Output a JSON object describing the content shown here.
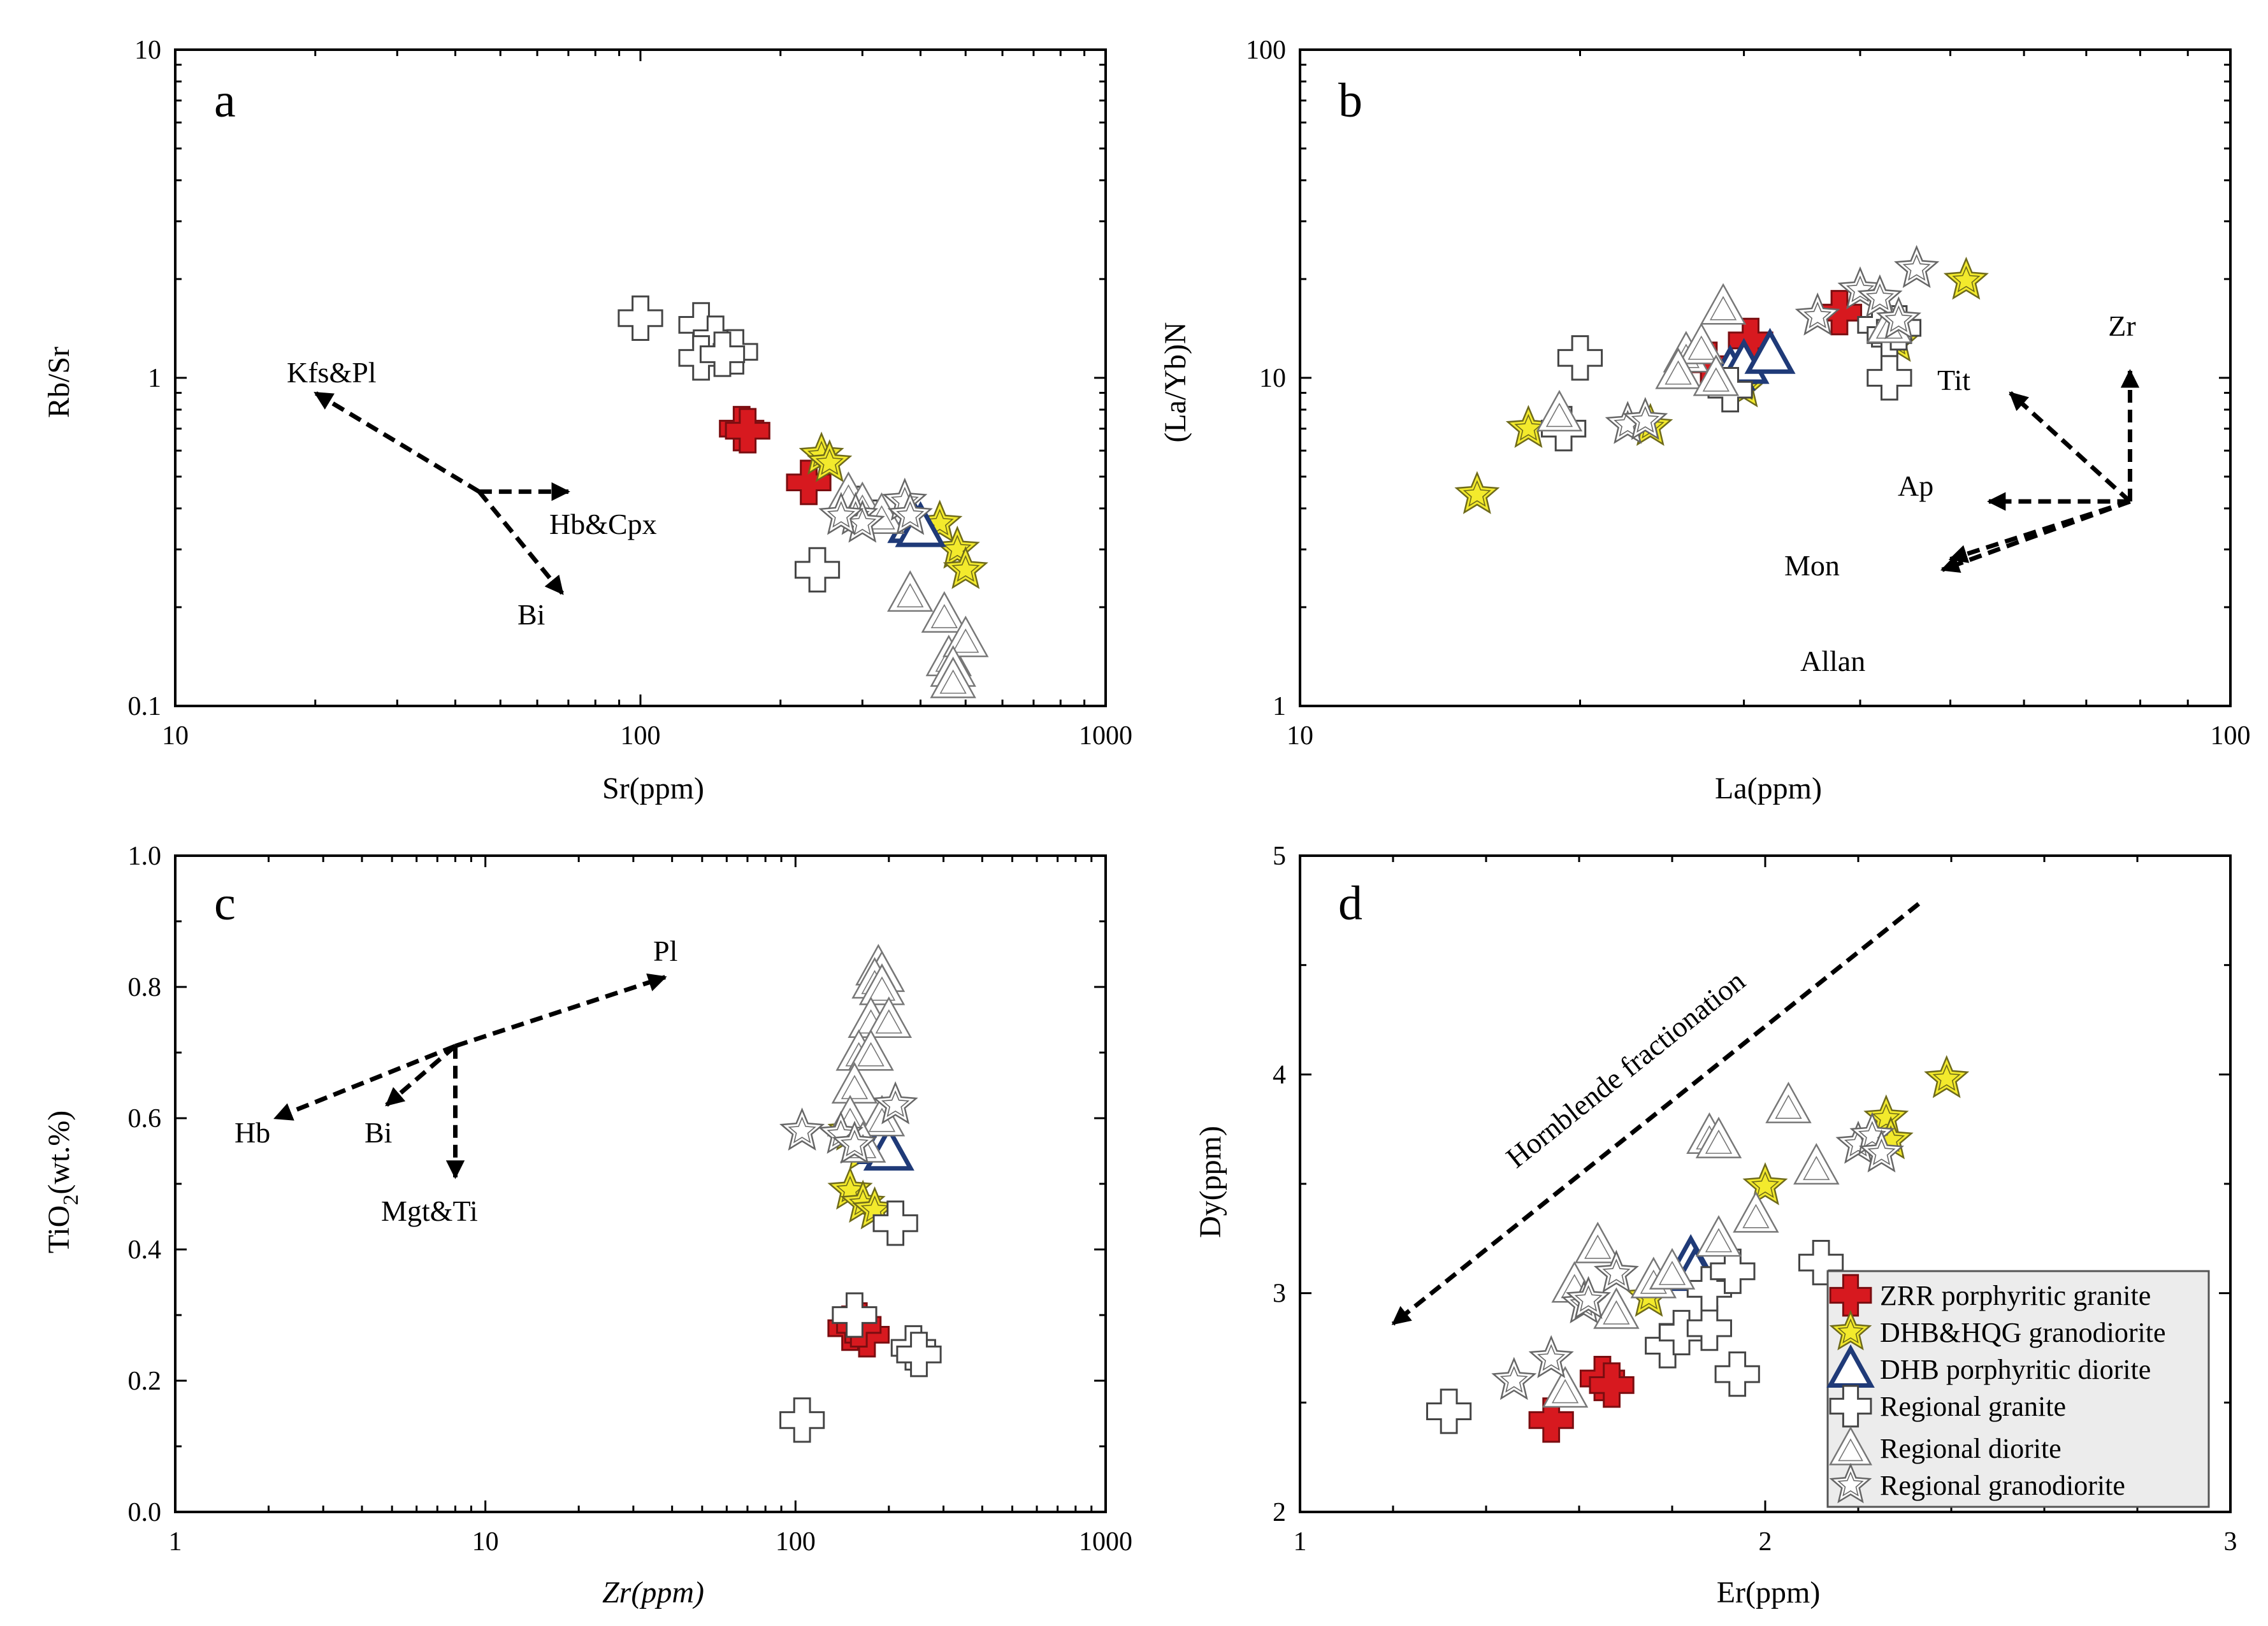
{
  "legend": [
    {
      "key": "zrr",
      "label": "ZRR porphyritic granite"
    },
    {
      "key": "dhb_hqg",
      "label": "DHB&HQG granodiorite"
    },
    {
      "key": "dhb_diorite",
      "label": "DHB porphyritic diorite"
    },
    {
      "key": "reg_granite",
      "label": "Regional granite"
    },
    {
      "key": "reg_diorite",
      "label": "Regional diorite"
    },
    {
      "key": "reg_granodiorite",
      "label": "Regional granodiorite"
    }
  ],
  "series_styles": {
    "zrr": {
      "marker": "cross",
      "fill": "#d7191f",
      "stroke": "#7a0d10"
    },
    "dhb_hqg": {
      "marker": "star",
      "fill": "#f3ea2c",
      "stroke": "#6e6a1a"
    },
    "dhb_diorite": {
      "marker": "triangle",
      "fill": "#ffffff",
      "stroke": "#1f3a78"
    },
    "reg_granite": {
      "marker": "cross",
      "fill": "#ffffff",
      "stroke": "#444444"
    },
    "reg_diorite": {
      "marker": "triangle",
      "fill": "#ffffff",
      "stroke": "#777777"
    },
    "reg_granodiorite": {
      "marker": "star",
      "fill": "#ffffff",
      "stroke": "#666666"
    }
  },
  "chart_data": [
    {
      "id": "a",
      "type": "scatter",
      "panel_label": "a",
      "xlabel": "Sr(ppm)",
      "ylabel": "Rb/Sr",
      "xscale": "log",
      "yscale": "log",
      "xlim": [
        10,
        1000
      ],
      "ylim": [
        0.1,
        10
      ],
      "xticks": [
        {
          "v": 10,
          "label": "10"
        },
        {
          "v": 100,
          "label": "100"
        },
        {
          "v": 1000,
          "label": "1000"
        }
      ],
      "yticks": [
        {
          "v": 0.1,
          "label": "0.1"
        },
        {
          "v": 1,
          "label": "1"
        },
        {
          "v": 10,
          "label": "10"
        }
      ],
      "vectors": [
        {
          "label": "Kfs&Pl",
          "from": [
            45,
            0.45
          ],
          "to": [
            20,
            0.9
          ]
        },
        {
          "label": "Hb&Cpx",
          "from": [
            45,
            0.45
          ],
          "to": [
            70,
            0.45
          ]
        },
        {
          "label": "Bi",
          "from": [
            45,
            0.45
          ],
          "to": [
            68,
            0.22
          ]
        }
      ],
      "series": [
        {
          "key": "zrr",
          "points": [
            [
              165,
              0.7
            ],
            [
              170,
              0.69
            ],
            [
              230,
              0.48
            ]
          ]
        },
        {
          "key": "dhb_hqg",
          "points": [
            [
              245,
              0.58
            ],
            [
              255,
              0.55
            ],
            [
              440,
              0.36
            ],
            [
              480,
              0.3
            ],
            [
              500,
              0.26
            ]
          ]
        },
        {
          "key": "dhb_diorite",
          "points": [
            [
              385,
              0.36
            ],
            [
              400,
              0.35
            ]
          ]
        },
        {
          "key": "reg_granite",
          "points": [
            [
              100,
              1.52
            ],
            [
              135,
              1.45
            ],
            [
              145,
              1.32
            ],
            [
              160,
              1.2
            ],
            [
              135,
              1.15
            ],
            [
              150,
              1.18
            ],
            [
              240,
              0.26
            ],
            [
              290,
              0.4
            ]
          ]
        },
        {
          "key": "reg_diorite",
          "points": [
            [
              280,
              0.44
            ],
            [
              300,
              0.41
            ],
            [
              330,
              0.38
            ],
            [
              380,
              0.22
            ],
            [
              450,
              0.19
            ],
            [
              460,
              0.14
            ],
            [
              500,
              0.16
            ],
            [
              470,
              0.13
            ],
            [
              470,
              0.12
            ]
          ]
        },
        {
          "key": "reg_granodiorite",
          "points": [
            [
              290,
              0.38
            ],
            [
              300,
              0.36
            ],
            [
              270,
              0.38
            ],
            [
              370,
              0.42
            ],
            [
              380,
              0.38
            ]
          ]
        }
      ]
    },
    {
      "id": "b",
      "type": "scatter",
      "panel_label": "b",
      "xlabel": "La(ppm)",
      "ylabel": "(La/Yb)N",
      "xscale": "log",
      "yscale": "log",
      "xlim": [
        10,
        100
      ],
      "ylim": [
        1,
        100
      ],
      "xticks": [
        {
          "v": 10,
          "label": "10"
        },
        {
          "v": 100,
          "label": "100"
        }
      ],
      "yticks": [
        {
          "v": 1,
          "label": "1"
        },
        {
          "v": 10,
          "label": "10"
        },
        {
          "v": 100,
          "label": "100"
        }
      ],
      "vectors": [
        {
          "label": "Zr",
          "from": [
            78,
            4.2
          ],
          "to": [
            78,
            10.5
          ]
        },
        {
          "label": "Tit",
          "from": [
            78,
            4.2
          ],
          "to": [
            58,
            9.0
          ]
        },
        {
          "label": "Ap",
          "from": [
            78,
            4.2
          ],
          "to": [
            55,
            4.2
          ]
        },
        {
          "label": "Mon",
          "from": [
            78,
            4.2
          ],
          "to": [
            50,
            2.8
          ]
        },
        {
          "label": "Allan",
          "from": [
            78,
            4.2
          ],
          "to": [
            49,
            2.6
          ]
        }
      ],
      "series": [
        {
          "key": "zrr",
          "points": [
            [
              27.5,
              11.0
            ],
            [
              30.5,
              13.0
            ],
            [
              38,
              15.8
            ]
          ]
        },
        {
          "key": "dhb_hqg",
          "points": [
            [
              15.5,
              4.4
            ],
            [
              17.6,
              7.0
            ],
            [
              23.8,
              7.1
            ],
            [
              30,
              9.3
            ],
            [
              43.8,
              12.8
            ],
            [
              52,
              19.8
            ]
          ]
        },
        {
          "key": "dhb_diorite",
          "points": [
            [
              29,
              10.5
            ],
            [
              30,
              11.0
            ],
            [
              32,
              11.8
            ]
          ]
        },
        {
          "key": "reg_granite",
          "points": [
            [
              20,
              11.5
            ],
            [
              19.2,
              7.0
            ],
            [
              29,
              9.2
            ],
            [
              42,
              14.5
            ],
            [
              43,
              13.5
            ],
            [
              43,
              10.0
            ],
            [
              44,
              14.2
            ]
          ]
        },
        {
          "key": "reg_diorite",
          "points": [
            [
              19,
              7.8
            ],
            [
              26,
              11.8
            ],
            [
              27,
              12.5
            ],
            [
              28.5,
              16.5
            ],
            [
              25.5,
              10.5
            ],
            [
              28,
              10.0
            ],
            [
              43,
              14.5
            ]
          ]
        },
        {
          "key": "reg_granodiorite",
          "points": [
            [
              22.5,
              7.2
            ],
            [
              23.5,
              7.4
            ],
            [
              36,
              15.4
            ],
            [
              40,
              18.5
            ],
            [
              42,
              17.5
            ],
            [
              46,
              21.5
            ],
            [
              44,
              15.0
            ]
          ]
        }
      ]
    },
    {
      "id": "c",
      "type": "scatter",
      "panel_label": "c",
      "xlabel": "Zr(ppm)",
      "ylabel_main": "TiO",
      "ylabel_sub": "2",
      "ylabel_tail": "(wt.%)",
      "xscale": "log",
      "yscale": "linear",
      "xlim": [
        1,
        1000
      ],
      "ylim": [
        0,
        1
      ],
      "xticks": [
        {
          "v": 1,
          "label": "1"
        },
        {
          "v": 10,
          "label": "10"
        },
        {
          "v": 100,
          "label": "100"
        },
        {
          "v": 1000,
          "label": "1000"
        }
      ],
      "yticks": [
        {
          "v": 0,
          "label": "0.0"
        },
        {
          "v": 0.2,
          "label": "0.2"
        },
        {
          "v": 0.4,
          "label": "0.4"
        },
        {
          "v": 0.6,
          "label": "0.6"
        },
        {
          "v": 0.8,
          "label": "0.8"
        },
        {
          "v": 1.0,
          "label": "1.0"
        }
      ],
      "vectors": [
        {
          "label": "Pl",
          "from": [
            8,
            0.71
          ],
          "to": [
            38,
            0.815
          ]
        },
        {
          "label": "Hb",
          "from": [
            8,
            0.71
          ],
          "to": [
            2.1,
            0.6
          ]
        },
        {
          "label": "Bi",
          "from": [
            8,
            0.71
          ],
          "to": [
            4.8,
            0.62
          ]
        },
        {
          "label": "Mgt&Ti",
          "from": [
            8,
            0.71
          ],
          "to": [
            8,
            0.51
          ]
        }
      ],
      "series": [
        {
          "key": "zrr",
          "points": [
            [
              150,
              0.28
            ],
            [
              170,
              0.27
            ],
            [
              160,
              0.285
            ]
          ]
        },
        {
          "key": "dhb_hqg",
          "points": [
            [
              150,
              0.58
            ],
            [
              165,
              0.55
            ],
            [
              150,
              0.49
            ],
            [
              165,
              0.47
            ],
            [
              180,
              0.46
            ]
          ]
        },
        {
          "key": "dhb_diorite",
          "points": [
            [
              180,
              0.57
            ],
            [
              190,
              0.56
            ],
            [
              200,
              0.55
            ]
          ]
        },
        {
          "key": "reg_granite",
          "points": [
            [
              105,
              0.14
            ],
            [
              155,
              0.3
            ],
            [
              210,
              0.44
            ],
            [
              240,
              0.25
            ],
            [
              250,
              0.24
            ]
          ]
        },
        {
          "key": "reg_diorite",
          "points": [
            [
              185,
              0.83
            ],
            [
              190,
              0.82
            ],
            [
              180,
              0.81
            ],
            [
              190,
              0.8
            ],
            [
              175,
              0.75
            ],
            [
              200,
              0.75
            ],
            [
              160,
              0.7
            ],
            [
              175,
              0.7
            ],
            [
              155,
              0.65
            ],
            [
              150,
              0.6
            ],
            [
              190,
              0.6
            ],
            [
              165,
              0.56
            ]
          ]
        },
        {
          "key": "reg_granodiorite",
          "points": [
            [
              105,
              0.58
            ],
            [
              210,
              0.62
            ],
            [
              140,
              0.575
            ],
            [
              155,
              0.56
            ]
          ]
        }
      ]
    },
    {
      "id": "d",
      "type": "scatter",
      "panel_label": "d",
      "xlabel": "Er(ppm)",
      "ylabel": "Dy(ppm)",
      "xscale": "linear",
      "yscale": "linear",
      "xlim": [
        1,
        3
      ],
      "ylim": [
        2,
        5
      ],
      "xticks": [
        {
          "v": 1,
          "label": "1"
        },
        {
          "v": 2,
          "label": "2"
        },
        {
          "v": 3,
          "label": "3"
        }
      ],
      "yticks": [
        {
          "v": 2,
          "label": "2"
        },
        {
          "v": 3,
          "label": "3"
        },
        {
          "v": 4,
          "label": "4"
        },
        {
          "v": 5,
          "label": "5"
        }
      ],
      "trend_label": "Hornblende fractionation",
      "trend": {
        "from": [
          2.33,
          4.78
        ],
        "to": [
          1.2,
          2.86
        ]
      },
      "series": [
        {
          "key": "zrr",
          "points": [
            [
              1.54,
              2.42
            ],
            [
              1.65,
              2.61
            ],
            [
              1.67,
              2.58
            ]
          ]
        },
        {
          "key": "dhb_hqg",
          "points": [
            [
              1.75,
              2.98
            ],
            [
              2.0,
              3.49
            ],
            [
              2.26,
              3.8
            ],
            [
              2.27,
              3.7
            ],
            [
              2.39,
              3.98
            ]
          ]
        },
        {
          "key": "dhb_diorite",
          "points": [
            [
              1.84,
              3.15
            ],
            [
              1.85,
              3.1
            ]
          ]
        },
        {
          "key": "reg_granite",
          "points": [
            [
              1.32,
              2.46
            ],
            [
              1.79,
              2.76
            ],
            [
              1.82,
              2.82
            ],
            [
              1.88,
              2.84
            ],
            [
              1.88,
              3.02
            ],
            [
              1.93,
              3.1
            ],
            [
              1.94,
              2.63
            ],
            [
              2.12,
              3.14
            ]
          ]
        },
        {
          "key": "reg_diorite",
          "points": [
            [
              1.57,
              2.56
            ],
            [
              1.59,
              3.04
            ],
            [
              1.64,
              3.22
            ],
            [
              1.68,
              2.92
            ],
            [
              1.76,
              3.06
            ],
            [
              1.8,
              3.1
            ],
            [
              1.88,
              3.72
            ],
            [
              1.9,
              3.7
            ],
            [
              1.9,
              3.25
            ],
            [
              1.98,
              3.36
            ],
            [
              2.05,
              3.86
            ],
            [
              2.11,
              3.58
            ]
          ]
        },
        {
          "key": "reg_granodiorite",
          "points": [
            [
              1.46,
              2.6
            ],
            [
              1.54,
              2.7
            ],
            [
              1.61,
              2.95
            ],
            [
              1.62,
              2.97
            ],
            [
              1.68,
              3.09
            ],
            [
              2.2,
              3.68
            ],
            [
              2.23,
              3.72
            ],
            [
              2.25,
              3.64
            ]
          ]
        }
      ]
    }
  ]
}
